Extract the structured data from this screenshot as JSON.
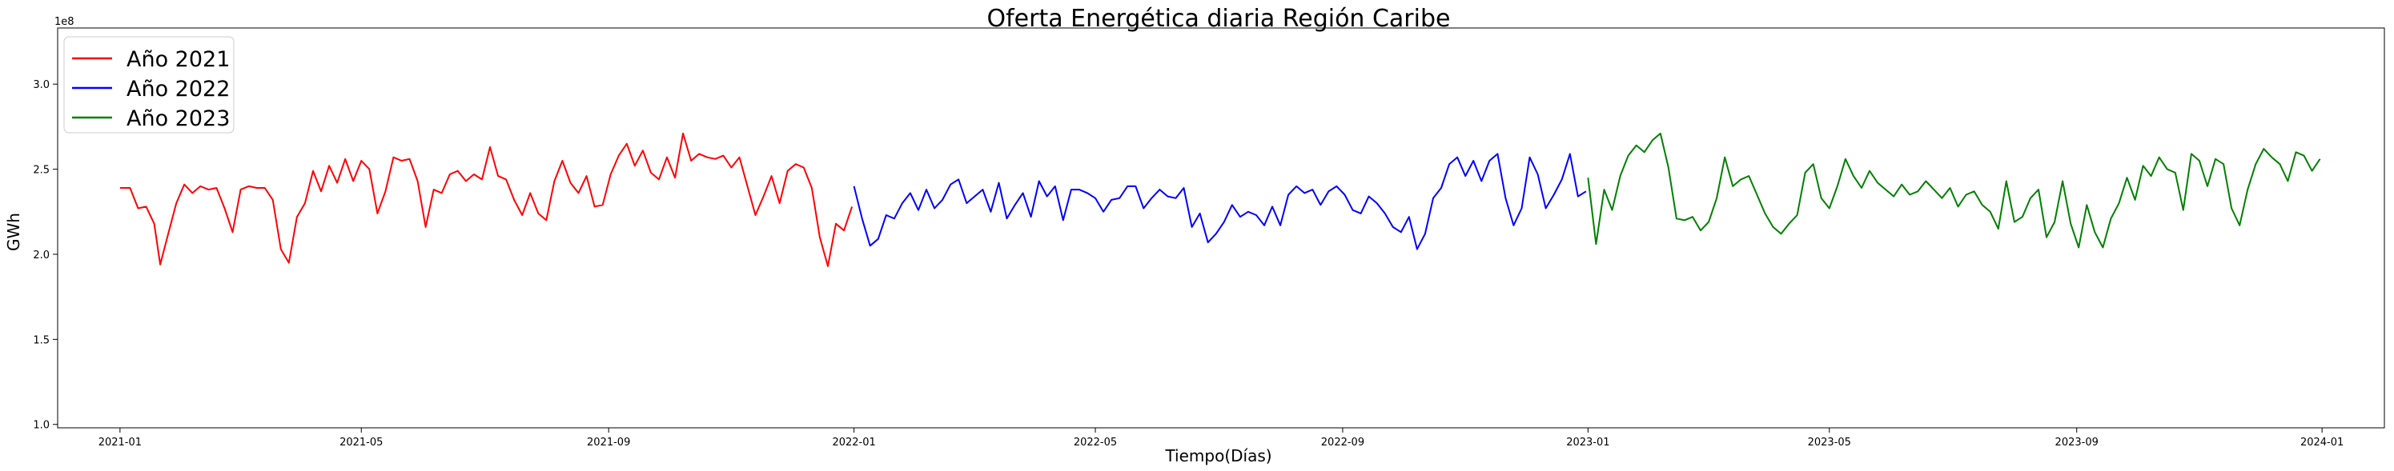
{
  "chart_data": {
    "type": "line",
    "title": "Oferta Energética diaria Región Caribe",
    "xlabel": "Tiempo(Días)",
    "ylabel": "GWh",
    "y_offset_label": "1e8",
    "ylim": [
      0.98,
      3.33
    ],
    "xlim": [
      "2020-12-01",
      "2024-02-01"
    ],
    "grid": false,
    "legend_position": "top-left",
    "x_ticks": [
      "2021-01",
      "2021-05",
      "2021-09",
      "2022-01",
      "2022-05",
      "2022-09",
      "2023-01",
      "2023-05",
      "2023-09",
      "2024-01"
    ],
    "y_ticks": [
      "1.0",
      "1.5",
      "2.0",
      "2.5",
      "3.0"
    ],
    "series": [
      {
        "name": "Año 2021",
        "color": "#ff0000",
        "points": [
          [
            "2021-01-01",
            2.39
          ],
          [
            "2021-01-06",
            2.39
          ],
          [
            "2021-01-10",
            2.27
          ],
          [
            "2021-01-14",
            2.28
          ],
          [
            "2021-01-18",
            2.18
          ],
          [
            "2021-01-21",
            1.94
          ],
          [
            "2021-01-25",
            2.12
          ],
          [
            "2021-01-29",
            2.3
          ],
          [
            "2021-02-02",
            2.41
          ],
          [
            "2021-02-06",
            2.36
          ],
          [
            "2021-02-10",
            2.4
          ],
          [
            "2021-02-14",
            2.38
          ],
          [
            "2021-02-18",
            2.39
          ],
          [
            "2021-02-22",
            2.27
          ],
          [
            "2021-02-26",
            2.13
          ],
          [
            "2021-03-02",
            2.38
          ],
          [
            "2021-03-06",
            2.4
          ],
          [
            "2021-03-10",
            2.39
          ],
          [
            "2021-03-14",
            2.39
          ],
          [
            "2021-03-18",
            2.32
          ],
          [
            "2021-03-22",
            2.03
          ],
          [
            "2021-03-26",
            1.95
          ],
          [
            "2021-03-30",
            2.22
          ],
          [
            "2021-04-03",
            2.3
          ],
          [
            "2021-04-07",
            2.49
          ],
          [
            "2021-04-11",
            2.37
          ],
          [
            "2021-04-15",
            2.52
          ],
          [
            "2021-04-19",
            2.42
          ],
          [
            "2021-04-23",
            2.56
          ],
          [
            "2021-04-27",
            2.43
          ],
          [
            "2021-05-01",
            2.55
          ],
          [
            "2021-05-05",
            2.5
          ],
          [
            "2021-05-09",
            2.24
          ],
          [
            "2021-05-13",
            2.37
          ],
          [
            "2021-05-17",
            2.57
          ],
          [
            "2021-05-21",
            2.55
          ],
          [
            "2021-05-25",
            2.56
          ],
          [
            "2021-05-29",
            2.43
          ],
          [
            "2021-06-02",
            2.16
          ],
          [
            "2021-06-06",
            2.38
          ],
          [
            "2021-06-10",
            2.36
          ],
          [
            "2021-06-14",
            2.47
          ],
          [
            "2021-06-18",
            2.49
          ],
          [
            "2021-06-22",
            2.43
          ],
          [
            "2021-06-26",
            2.47
          ],
          [
            "2021-06-30",
            2.44
          ],
          [
            "2021-07-04",
            2.63
          ],
          [
            "2021-07-08",
            2.46
          ],
          [
            "2021-07-12",
            2.44
          ],
          [
            "2021-07-16",
            2.32
          ],
          [
            "2021-07-20",
            2.23
          ],
          [
            "2021-07-24",
            2.36
          ],
          [
            "2021-07-28",
            2.24
          ],
          [
            "2021-08-01",
            2.2
          ],
          [
            "2021-08-05",
            2.43
          ],
          [
            "2021-08-09",
            2.55
          ],
          [
            "2021-08-13",
            2.42
          ],
          [
            "2021-08-17",
            2.36
          ],
          [
            "2021-08-21",
            2.46
          ],
          [
            "2021-08-25",
            2.28
          ],
          [
            "2021-08-29",
            2.29
          ],
          [
            "2021-09-02",
            2.47
          ],
          [
            "2021-09-06",
            2.58
          ],
          [
            "2021-09-10",
            2.65
          ],
          [
            "2021-09-14",
            2.52
          ],
          [
            "2021-09-18",
            2.61
          ],
          [
            "2021-09-22",
            2.48
          ],
          [
            "2021-09-26",
            2.44
          ],
          [
            "2021-09-30",
            2.57
          ],
          [
            "2021-10-04",
            2.45
          ],
          [
            "2021-10-08",
            2.71
          ],
          [
            "2021-10-12",
            2.55
          ],
          [
            "2021-10-16",
            2.59
          ],
          [
            "2021-10-20",
            2.57
          ],
          [
            "2021-10-24",
            2.56
          ],
          [
            "2021-10-28",
            2.58
          ],
          [
            "2021-11-01",
            2.51
          ],
          [
            "2021-11-05",
            2.57
          ],
          [
            "2021-11-09",
            2.4
          ],
          [
            "2021-11-13",
            2.23
          ],
          [
            "2021-11-17",
            2.34
          ],
          [
            "2021-11-21",
            2.46
          ],
          [
            "2021-11-25",
            2.3
          ],
          [
            "2021-11-29",
            2.49
          ],
          [
            "2021-12-03",
            2.53
          ],
          [
            "2021-12-07",
            2.51
          ],
          [
            "2021-12-11",
            2.39
          ],
          [
            "2021-12-15",
            2.1
          ],
          [
            "2021-12-19",
            1.93
          ],
          [
            "2021-12-23",
            2.18
          ],
          [
            "2021-12-27",
            2.14
          ],
          [
            "2021-12-31",
            2.28
          ]
        ]
      },
      {
        "name": "Año 2022",
        "color": "#0000ff",
        "points": [
          [
            "2022-01-01",
            2.4
          ],
          [
            "2022-01-05",
            2.21
          ],
          [
            "2022-01-09",
            2.05
          ],
          [
            "2022-01-13",
            2.09
          ],
          [
            "2022-01-17",
            2.23
          ],
          [
            "2022-01-21",
            2.21
          ],
          [
            "2022-01-25",
            2.3
          ],
          [
            "2022-01-29",
            2.36
          ],
          [
            "2022-02-02",
            2.26
          ],
          [
            "2022-02-06",
            2.38
          ],
          [
            "2022-02-10",
            2.27
          ],
          [
            "2022-02-14",
            2.32
          ],
          [
            "2022-02-18",
            2.41
          ],
          [
            "2022-02-22",
            2.44
          ],
          [
            "2022-02-26",
            2.3
          ],
          [
            "2022-03-02",
            2.34
          ],
          [
            "2022-03-06",
            2.38
          ],
          [
            "2022-03-10",
            2.25
          ],
          [
            "2022-03-14",
            2.42
          ],
          [
            "2022-03-18",
            2.21
          ],
          [
            "2022-03-22",
            2.29
          ],
          [
            "2022-03-26",
            2.36
          ],
          [
            "2022-03-30",
            2.22
          ],
          [
            "2022-04-03",
            2.43
          ],
          [
            "2022-04-07",
            2.34
          ],
          [
            "2022-04-11",
            2.4
          ],
          [
            "2022-04-15",
            2.2
          ],
          [
            "2022-04-19",
            2.38
          ],
          [
            "2022-04-23",
            2.38
          ],
          [
            "2022-04-27",
            2.36
          ],
          [
            "2022-05-01",
            2.33
          ],
          [
            "2022-05-05",
            2.25
          ],
          [
            "2022-05-09",
            2.32
          ],
          [
            "2022-05-13",
            2.33
          ],
          [
            "2022-05-17",
            2.4
          ],
          [
            "2022-05-21",
            2.4
          ],
          [
            "2022-05-25",
            2.27
          ],
          [
            "2022-05-29",
            2.33
          ],
          [
            "2022-06-02",
            2.38
          ],
          [
            "2022-06-06",
            2.34
          ],
          [
            "2022-06-10",
            2.33
          ],
          [
            "2022-06-14",
            2.39
          ],
          [
            "2022-06-18",
            2.16
          ],
          [
            "2022-06-22",
            2.24
          ],
          [
            "2022-06-26",
            2.07
          ],
          [
            "2022-06-30",
            2.12
          ],
          [
            "2022-07-04",
            2.19
          ],
          [
            "2022-07-08",
            2.29
          ],
          [
            "2022-07-12",
            2.22
          ],
          [
            "2022-07-16",
            2.25
          ],
          [
            "2022-07-20",
            2.23
          ],
          [
            "2022-07-24",
            2.17
          ],
          [
            "2022-07-28",
            2.28
          ],
          [
            "2022-08-01",
            2.17
          ],
          [
            "2022-08-05",
            2.35
          ],
          [
            "2022-08-09",
            2.4
          ],
          [
            "2022-08-13",
            2.36
          ],
          [
            "2022-08-17",
            2.38
          ],
          [
            "2022-08-21",
            2.29
          ],
          [
            "2022-08-25",
            2.37
          ],
          [
            "2022-08-29",
            2.4
          ],
          [
            "2022-09-02",
            2.35
          ],
          [
            "2022-09-06",
            2.26
          ],
          [
            "2022-09-10",
            2.24
          ],
          [
            "2022-09-14",
            2.34
          ],
          [
            "2022-09-18",
            2.3
          ],
          [
            "2022-09-22",
            2.24
          ],
          [
            "2022-09-26",
            2.16
          ],
          [
            "2022-09-30",
            2.13
          ],
          [
            "2022-10-04",
            2.22
          ],
          [
            "2022-10-08",
            2.03
          ],
          [
            "2022-10-12",
            2.12
          ],
          [
            "2022-10-16",
            2.33
          ],
          [
            "2022-10-20",
            2.39
          ],
          [
            "2022-10-24",
            2.53
          ],
          [
            "2022-10-28",
            2.57
          ],
          [
            "2022-11-01",
            2.46
          ],
          [
            "2022-11-05",
            2.55
          ],
          [
            "2022-11-09",
            2.43
          ],
          [
            "2022-11-13",
            2.55
          ],
          [
            "2022-11-17",
            2.59
          ],
          [
            "2022-11-21",
            2.33
          ],
          [
            "2022-11-25",
            2.17
          ],
          [
            "2022-11-29",
            2.27
          ],
          [
            "2022-12-03",
            2.57
          ],
          [
            "2022-12-07",
            2.47
          ],
          [
            "2022-12-11",
            2.27
          ],
          [
            "2022-12-15",
            2.35
          ],
          [
            "2022-12-19",
            2.44
          ],
          [
            "2022-12-23",
            2.59
          ],
          [
            "2022-12-27",
            2.34
          ],
          [
            "2022-12-31",
            2.37
          ]
        ]
      },
      {
        "name": "Año 2023",
        "color": "#008000",
        "points": [
          [
            "2023-01-01",
            2.45
          ],
          [
            "2023-01-05",
            2.06
          ],
          [
            "2023-01-09",
            2.38
          ],
          [
            "2023-01-13",
            2.26
          ],
          [
            "2023-01-17",
            2.46
          ],
          [
            "2023-01-21",
            2.58
          ],
          [
            "2023-01-25",
            2.64
          ],
          [
            "2023-01-29",
            2.6
          ],
          [
            "2023-02-02",
            2.67
          ],
          [
            "2023-02-06",
            2.71
          ],
          [
            "2023-02-10",
            2.51
          ],
          [
            "2023-02-14",
            2.21
          ],
          [
            "2023-02-18",
            2.2
          ],
          [
            "2023-02-22",
            2.22
          ],
          [
            "2023-02-26",
            2.14
          ],
          [
            "2023-03-02",
            2.19
          ],
          [
            "2023-03-06",
            2.33
          ],
          [
            "2023-03-10",
            2.57
          ],
          [
            "2023-03-14",
            2.4
          ],
          [
            "2023-03-18",
            2.44
          ],
          [
            "2023-03-22",
            2.46
          ],
          [
            "2023-03-26",
            2.35
          ],
          [
            "2023-03-30",
            2.24
          ],
          [
            "2023-04-03",
            2.16
          ],
          [
            "2023-04-07",
            2.12
          ],
          [
            "2023-04-11",
            2.18
          ],
          [
            "2023-04-15",
            2.23
          ],
          [
            "2023-04-19",
            2.48
          ],
          [
            "2023-04-23",
            2.53
          ],
          [
            "2023-04-27",
            2.33
          ],
          [
            "2023-05-01",
            2.27
          ],
          [
            "2023-05-05",
            2.4
          ],
          [
            "2023-05-09",
            2.56
          ],
          [
            "2023-05-13",
            2.46
          ],
          [
            "2023-05-17",
            2.39
          ],
          [
            "2023-05-21",
            2.49
          ],
          [
            "2023-05-25",
            2.42
          ],
          [
            "2023-05-29",
            2.38
          ],
          [
            "2023-06-02",
            2.34
          ],
          [
            "2023-06-06",
            2.41
          ],
          [
            "2023-06-10",
            2.35
          ],
          [
            "2023-06-14",
            2.37
          ],
          [
            "2023-06-18",
            2.43
          ],
          [
            "2023-06-22",
            2.38
          ],
          [
            "2023-06-26",
            2.33
          ],
          [
            "2023-06-30",
            2.39
          ],
          [
            "2023-07-04",
            2.28
          ],
          [
            "2023-07-08",
            2.35
          ],
          [
            "2023-07-12",
            2.37
          ],
          [
            "2023-07-16",
            2.29
          ],
          [
            "2023-07-20",
            2.25
          ],
          [
            "2023-07-24",
            2.15
          ],
          [
            "2023-07-28",
            2.43
          ],
          [
            "2023-08-01",
            2.19
          ],
          [
            "2023-08-05",
            2.22
          ],
          [
            "2023-08-09",
            2.33
          ],
          [
            "2023-08-13",
            2.38
          ],
          [
            "2023-08-17",
            2.1
          ],
          [
            "2023-08-21",
            2.19
          ],
          [
            "2023-08-25",
            2.43
          ],
          [
            "2023-08-29",
            2.18
          ],
          [
            "2023-09-02",
            2.04
          ],
          [
            "2023-09-06",
            2.29
          ],
          [
            "2023-09-10",
            2.13
          ],
          [
            "2023-09-14",
            2.04
          ],
          [
            "2023-09-18",
            2.21
          ],
          [
            "2023-09-22",
            2.3
          ],
          [
            "2023-09-26",
            2.45
          ],
          [
            "2023-09-30",
            2.32
          ],
          [
            "2023-10-04",
            2.52
          ],
          [
            "2023-10-08",
            2.46
          ],
          [
            "2023-10-12",
            2.57
          ],
          [
            "2023-10-16",
            2.5
          ],
          [
            "2023-10-20",
            2.48
          ],
          [
            "2023-10-24",
            2.26
          ],
          [
            "2023-10-28",
            2.59
          ],
          [
            "2023-11-01",
            2.55
          ],
          [
            "2023-11-05",
            2.4
          ],
          [
            "2023-11-09",
            2.56
          ],
          [
            "2023-11-13",
            2.53
          ],
          [
            "2023-11-17",
            2.27
          ],
          [
            "2023-11-21",
            2.17
          ],
          [
            "2023-11-25",
            2.38
          ],
          [
            "2023-11-29",
            2.53
          ],
          [
            "2023-12-03",
            2.62
          ],
          [
            "2023-12-07",
            2.57
          ],
          [
            "2023-12-11",
            2.53
          ],
          [
            "2023-12-15",
            2.43
          ],
          [
            "2023-12-19",
            2.6
          ],
          [
            "2023-12-23",
            2.58
          ],
          [
            "2023-12-27",
            2.49
          ],
          [
            "2023-12-31",
            2.56
          ]
        ]
      }
    ]
  }
}
